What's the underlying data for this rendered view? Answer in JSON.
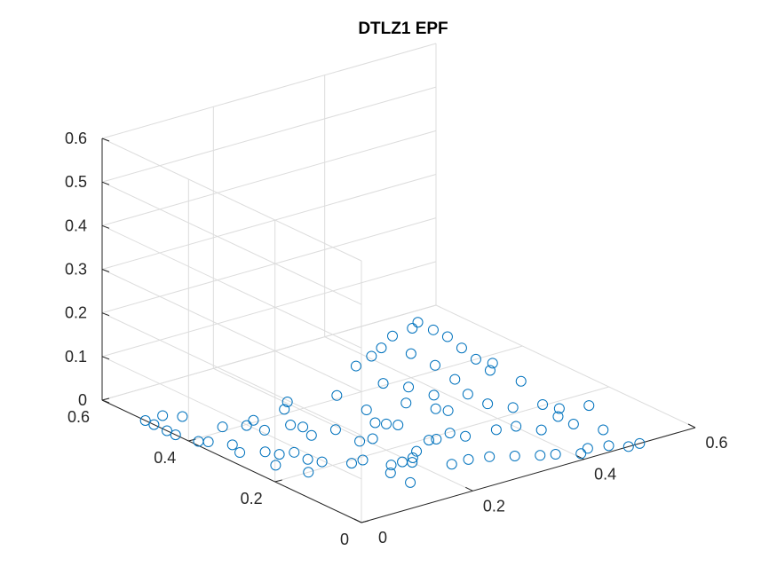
{
  "chart_data": {
    "type": "scatter3d",
    "title": "DTLZ1 EPF",
    "xlabel": "",
    "ylabel": "",
    "zlabel": "",
    "xlim": [
      0,
      0.6
    ],
    "ylim": [
      0,
      0.6
    ],
    "zlim": [
      0,
      0.6
    ],
    "x_ticks": [
      0,
      0.2,
      0.4,
      0.6
    ],
    "x_tick_labels": [
      "0",
      "0.2",
      "0.4",
      "0.6"
    ],
    "y_ticks": [
      0,
      0.2,
      0.4,
      0.6
    ],
    "y_tick_labels": [
      "0",
      "0.2",
      "0.4",
      "0.6"
    ],
    "z_ticks": [
      0,
      0.1,
      0.2,
      0.3,
      0.4,
      0.5,
      0.6
    ],
    "z_tick_labels": [
      "0",
      "0.1",
      "0.2",
      "0.3",
      "0.4",
      "0.5",
      "0.6"
    ],
    "grid": true,
    "marker": "open-circle",
    "color": "#0072bd",
    "points": [
      [
        0.0,
        0.5,
        0.0
      ],
      [
        0.0,
        0.48,
        0.0
      ],
      [
        0.0,
        0.45,
        0.0
      ],
      [
        0.0,
        0.43,
        0.0
      ],
      [
        0.01,
        0.39,
        0.0
      ],
      [
        0.02,
        0.38,
        0.0
      ],
      [
        0.04,
        0.35,
        0.0
      ],
      [
        0.03,
        0.32,
        0.0
      ],
      [
        0.06,
        0.3,
        0.0
      ],
      [
        0.07,
        0.28,
        0.0
      ],
      [
        0.09,
        0.24,
        0.0
      ],
      [
        0.1,
        0.22,
        0.0
      ],
      [
        0.13,
        0.19,
        0.0
      ],
      [
        0.15,
        0.19,
        0.0
      ],
      [
        0.17,
        0.15,
        0.0
      ],
      [
        0.19,
        0.15,
        0.0
      ],
      [
        0.2,
        0.14,
        0.0
      ],
      [
        0.24,
        0.1,
        0.0
      ],
      [
        0.27,
        0.1,
        0.0
      ],
      [
        0.3,
        0.09,
        0.0
      ],
      [
        0.33,
        0.07,
        0.0
      ],
      [
        0.36,
        0.05,
        0.0
      ],
      [
        0.38,
        0.04,
        0.0
      ],
      [
        0.41,
        0.02,
        0.0
      ],
      [
        0.43,
        0.03,
        0.0
      ],
      [
        0.46,
        0.02,
        0.0
      ],
      [
        0.48,
        0.0,
        0.0
      ],
      [
        0.5,
        0.0,
        0.0
      ],
      [
        0.0,
        0.46,
        0.03
      ],
      [
        0.02,
        0.44,
        0.03
      ],
      [
        0.03,
        0.36,
        0.04
      ],
      [
        0.05,
        0.33,
        0.05
      ],
      [
        0.07,
        0.34,
        0.05
      ],
      [
        0.09,
        0.34,
        0.02
      ],
      [
        0.12,
        0.29,
        0.04
      ],
      [
        0.12,
        0.27,
        0.03
      ],
      [
        0.09,
        0.28,
        0.06
      ],
      [
        0.11,
        0.32,
        0.07
      ],
      [
        0.14,
        0.24,
        0.05
      ],
      [
        0.16,
        0.21,
        0.03
      ],
      [
        0.2,
        0.2,
        0.06
      ],
      [
        0.23,
        0.14,
        0.04
      ],
      [
        0.26,
        0.13,
        0.05
      ],
      [
        0.28,
        0.12,
        0.04
      ],
      [
        0.32,
        0.1,
        0.05
      ],
      [
        0.34,
        0.08,
        0.06
      ],
      [
        0.37,
        0.06,
        0.05
      ],
      [
        0.4,
        0.06,
        0.07
      ],
      [
        0.42,
        0.05,
        0.05
      ],
      [
        0.45,
        0.02,
        0.04
      ],
      [
        0.1,
        0.3,
        0.1
      ],
      [
        0.15,
        0.25,
        0.12
      ],
      [
        0.18,
        0.22,
        0.09
      ],
      [
        0.22,
        0.18,
        0.11
      ],
      [
        0.25,
        0.15,
        0.1
      ],
      [
        0.28,
        0.16,
        0.08
      ],
      [
        0.3,
        0.14,
        0.12
      ],
      [
        0.32,
        0.12,
        0.1
      ],
      [
        0.35,
        0.1,
        0.09
      ],
      [
        0.38,
        0.07,
        0.1
      ],
      [
        0.41,
        0.07,
        0.08
      ],
      [
        0.44,
        0.04,
        0.09
      ],
      [
        0.2,
        0.27,
        0.16
      ],
      [
        0.23,
        0.25,
        0.2
      ],
      [
        0.25,
        0.25,
        0.22
      ],
      [
        0.27,
        0.23,
        0.24
      ],
      [
        0.28,
        0.23,
        0.25
      ],
      [
        0.3,
        0.22,
        0.23
      ],
      [
        0.31,
        0.2,
        0.22
      ],
      [
        0.32,
        0.18,
        0.2
      ],
      [
        0.33,
        0.16,
        0.18
      ],
      [
        0.34,
        0.14,
        0.16
      ],
      [
        0.22,
        0.26,
        0.18
      ],
      [
        0.26,
        0.22,
        0.19
      ],
      [
        0.28,
        0.19,
        0.17
      ],
      [
        0.3,
        0.17,
        0.14
      ],
      [
        0.24,
        0.2,
        0.13
      ],
      [
        0.27,
        0.18,
        0.11
      ],
      [
        0.21,
        0.22,
        0.14
      ],
      [
        0.18,
        0.2,
        0.07
      ],
      [
        0.16,
        0.18,
        0.05
      ],
      [
        0.19,
        0.16,
        0.08
      ],
      [
        0.2,
        0.13,
        0.03
      ],
      [
        0.22,
        0.11,
        0.06
      ],
      [
        0.36,
        0.16,
        0.16
      ],
      [
        0.38,
        0.12,
        0.13
      ],
      [
        0.13,
        0.1,
        0.02
      ],
      [
        0.15,
        0.08,
        0.0
      ],
      [
        0.17,
        0.1,
        0.04
      ],
      [
        0.05,
        0.22,
        0.04
      ],
      [
        0.04,
        0.25,
        0.0
      ],
      [
        0.06,
        0.2,
        0.0
      ]
    ]
  }
}
